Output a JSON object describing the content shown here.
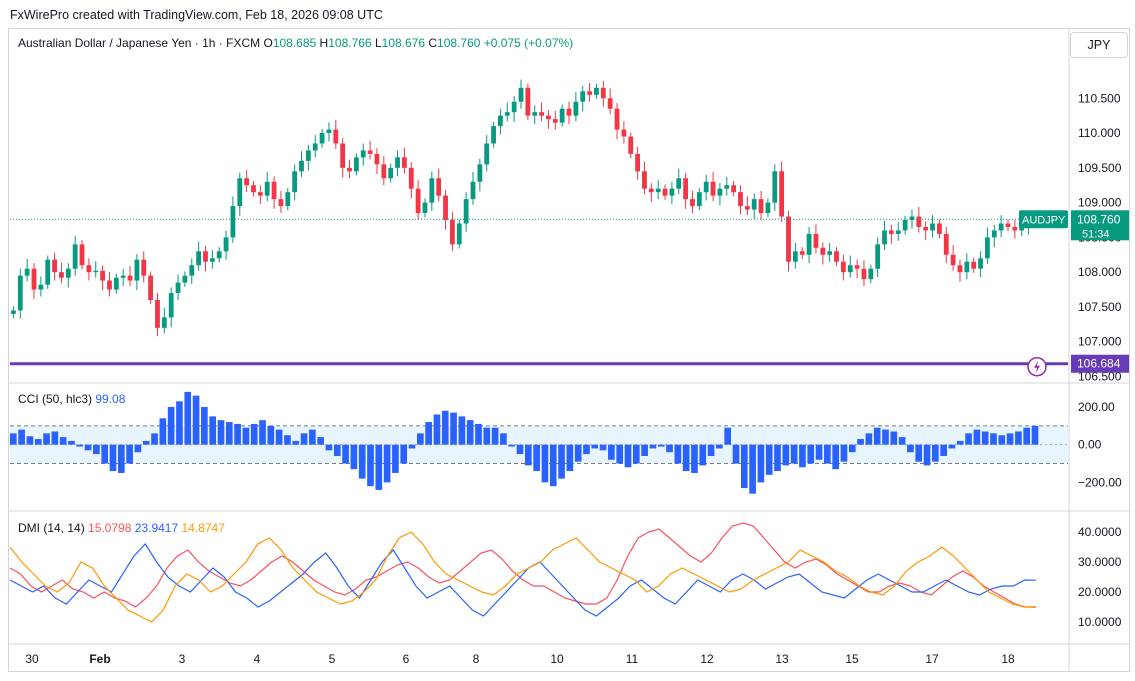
{
  "credit": "FxWirePro created with TradingView.com, Feb 18, 2026 09:08 UTC",
  "currency_button": "JPY",
  "legend": {
    "title": "Australian Dollar / Japanese Yen · 1h · FXCM",
    "o_label": "O",
    "o_value": "108.685",
    "h_label": "H",
    "h_value": "108.766",
    "l_label": "L",
    "l_value": "108.676",
    "c_label": "C",
    "c_value": "108.760",
    "change": "+0.075 (+0.07%)"
  },
  "colors": {
    "up": "#089981",
    "down": "#f23645",
    "cci": "#2962ff",
    "plus_di": "#f7525f",
    "minus_di": "#2962ff",
    "adx": "#ff9800",
    "level_line": "#673ab7"
  },
  "chart_data": [
    {
      "type": "candlestick",
      "pane": "price",
      "x_ticks": [
        "30",
        "Feb",
        "3",
        "4",
        "5",
        "6",
        "8",
        "10",
        "11",
        "12",
        "13",
        "15",
        "17",
        "18"
      ],
      "y_ticks": [
        "106.500",
        "107.000",
        "107.500",
        "108.000",
        "108.500",
        "109.000",
        "109.500",
        "110.000",
        "110.500"
      ],
      "ylim": [
        106.45,
        111.05
      ],
      "last_price_symbol": "AUDJPY",
      "last_price": "108.760",
      "countdown": "51:34",
      "level_line": "106.684",
      "series_close": [
        107.45,
        107.95,
        108.05,
        107.75,
        107.82,
        108.18,
        108.0,
        107.92,
        108.05,
        108.4,
        108.1,
        108.0,
        108.02,
        107.88,
        107.75,
        107.92,
        107.95,
        107.88,
        108.18,
        107.95,
        107.6,
        107.2,
        107.35,
        107.7,
        107.85,
        107.95,
        108.1,
        108.3,
        108.15,
        108.2,
        108.3,
        108.5,
        108.95,
        109.35,
        109.25,
        109.15,
        109.1,
        109.3,
        109.05,
        108.95,
        109.15,
        109.45,
        109.6,
        109.75,
        109.85,
        110.0,
        110.05,
        109.85,
        109.5,
        109.45,
        109.65,
        109.75,
        109.7,
        109.55,
        109.35,
        109.5,
        109.65,
        109.5,
        109.2,
        108.85,
        109.0,
        109.35,
        109.1,
        108.75,
        108.4,
        108.7,
        109.05,
        109.3,
        109.55,
        109.85,
        110.1,
        110.25,
        110.3,
        110.45,
        110.65,
        110.25,
        110.3,
        110.25,
        110.2,
        110.15,
        110.35,
        110.25,
        110.45,
        110.6,
        110.55,
        110.65,
        110.5,
        110.35,
        110.05,
        109.95,
        109.7,
        109.45,
        109.2,
        109.15,
        109.2,
        109.1,
        109.2,
        109.35,
        109.05,
        108.95,
        109.15,
        109.3,
        109.1,
        109.2,
        109.25,
        109.15,
        108.95,
        108.9,
        109.05,
        108.85,
        109.0,
        109.45,
        108.8,
        108.15,
        108.3,
        108.25,
        108.55,
        108.35,
        108.25,
        108.3,
        108.15,
        108.0,
        108.1,
        108.05,
        107.9,
        108.05,
        108.4,
        108.6,
        108.55,
        108.6,
        108.75,
        108.8,
        108.65,
        108.6,
        108.7,
        108.55,
        108.25,
        108.1,
        108.0,
        108.15,
        108.05,
        108.2,
        108.5,
        108.6,
        108.7,
        108.65,
        108.6,
        108.68,
        108.76
      ],
      "y_unit": "JPY"
    },
    {
      "type": "bar",
      "pane": "indicator",
      "name": "CCI (50, hlc3)",
      "value_label": "99.08",
      "y_ticks": [
        "200.00",
        "0.00",
        "−200.00"
      ],
      "ylim": [
        -320,
        290
      ],
      "bands": [
        100,
        -100
      ],
      "series_values": [
        60,
        80,
        45,
        30,
        60,
        70,
        40,
        20,
        -10,
        -30,
        -50,
        -100,
        -140,
        -150,
        -100,
        -40,
        20,
        60,
        140,
        200,
        230,
        280,
        260,
        200,
        150,
        130,
        120,
        110,
        90,
        110,
        130,
        100,
        80,
        50,
        20,
        60,
        80,
        40,
        -30,
        -60,
        -100,
        -130,
        -180,
        -220,
        -240,
        -200,
        -150,
        -100,
        -20,
        60,
        120,
        160,
        180,
        170,
        150,
        130,
        110,
        90,
        90,
        60,
        -10,
        -50,
        -110,
        -140,
        -200,
        -220,
        -180,
        -140,
        -90,
        -50,
        -20,
        -30,
        -80,
        -100,
        -120,
        -100,
        -60,
        -20,
        -10,
        -40,
        -100,
        -140,
        -150,
        -110,
        -60,
        -20,
        90,
        -100,
        -230,
        -260,
        -200,
        -160,
        -140,
        -110,
        -100,
        -120,
        -100,
        -80,
        -100,
        -130,
        -90,
        -40,
        30,
        60,
        90,
        80,
        70,
        40,
        -40,
        -90,
        -110,
        -90,
        -60,
        -20,
        20,
        60,
        80,
        70,
        60,
        50,
        60,
        70,
        90,
        99.08
      ]
    },
    {
      "type": "line",
      "pane": "indicator",
      "name": "DMI (14, 14)",
      "y_ticks": [
        "10.0000",
        "20.0000",
        "30.0000",
        "40.0000"
      ],
      "ylim": [
        4,
        44
      ],
      "series": [
        {
          "name": "+DI",
          "label": "15.0798",
          "values": [
            28,
            26,
            22,
            20,
            22,
            24,
            21,
            20,
            18,
            20,
            18,
            17,
            15,
            18,
            22,
            28,
            32,
            34,
            30,
            27,
            25,
            23,
            22,
            24,
            27,
            30,
            32,
            30,
            27,
            24,
            22,
            20,
            19,
            21,
            24,
            25,
            27,
            29,
            30,
            28,
            25,
            23,
            24,
            27,
            30,
            33,
            34,
            31,
            27,
            24,
            22,
            22,
            20,
            18,
            17,
            16,
            16,
            18,
            24,
            32,
            38,
            40,
            41,
            38,
            35,
            32,
            30,
            33,
            38,
            42,
            43,
            42,
            38,
            34,
            30,
            28,
            30,
            31,
            29,
            26,
            24,
            22,
            20,
            20,
            22,
            23,
            22,
            20,
            19,
            22,
            25,
            27,
            25,
            22,
            20,
            18,
            16,
            15,
            15.08
          ]
        },
        {
          "name": "−DI",
          "label": "23.9417",
          "values": [
            24,
            22,
            20,
            22,
            18,
            16,
            20,
            24,
            22,
            20,
            26,
            32,
            36,
            30,
            25,
            22,
            20,
            24,
            28,
            25,
            20,
            18,
            15,
            17,
            20,
            23,
            26,
            30,
            33,
            28,
            22,
            18,
            24,
            30,
            34,
            28,
            22,
            18,
            20,
            22,
            18,
            14,
            12,
            16,
            20,
            24,
            28,
            30,
            26,
            22,
            18,
            14,
            12,
            15,
            18,
            22,
            24,
            21,
            18,
            16,
            20,
            24,
            22,
            20,
            24,
            26,
            24,
            21,
            23,
            25,
            26,
            23,
            20,
            19,
            18,
            21,
            24,
            26,
            24,
            22,
            20,
            20,
            22,
            24,
            22,
            20,
            19,
            21,
            22,
            22,
            24,
            23.94
          ]
        },
        {
          "name": "ADX",
          "label": "14.8747",
          "values": [
            35,
            30,
            26,
            22,
            20,
            23,
            30,
            28,
            22,
            18,
            14,
            12,
            10,
            14,
            22,
            26,
            24,
            20,
            22,
            26,
            30,
            36,
            38,
            34,
            28,
            24,
            20,
            18,
            16,
            17,
            20,
            24,
            32,
            38,
            40,
            36,
            30,
            26,
            24,
            22,
            20,
            19,
            22,
            26,
            28,
            30,
            34,
            36,
            38,
            34,
            30,
            28,
            26,
            24,
            20,
            22,
            26,
            28,
            26,
            24,
            22,
            20,
            21,
            24,
            26,
            28,
            30,
            34,
            32,
            30,
            27,
            25,
            22,
            20,
            19,
            22,
            27,
            30,
            32,
            35,
            32,
            28,
            24,
            20,
            18,
            16,
            15,
            14.87
          ]
        }
      ]
    }
  ]
}
